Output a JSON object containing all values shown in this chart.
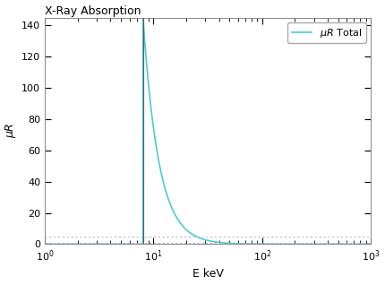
{
  "title": "X-Ray Absorption",
  "xlabel": "E keV",
  "ylabel": "μR",
  "legend_label": "$\\mu R$ Total",
  "line_color": "#4DCCCC",
  "vline_color": "#555566",
  "hline_color": "#aaaacc",
  "vline_x": 8.0,
  "hline_y": 5.0,
  "hline2_y": 1.0,
  "xmin": 1.0,
  "xmax": 1000.0,
  "ymin": 0,
  "ymax": 145,
  "absorption_edge": 8.0,
  "scale_factor": 145.0,
  "exponent": 3.0,
  "pre_edge_scale": 0.05,
  "pre_edge_exp": 3.0,
  "background_color": "#ffffff"
}
